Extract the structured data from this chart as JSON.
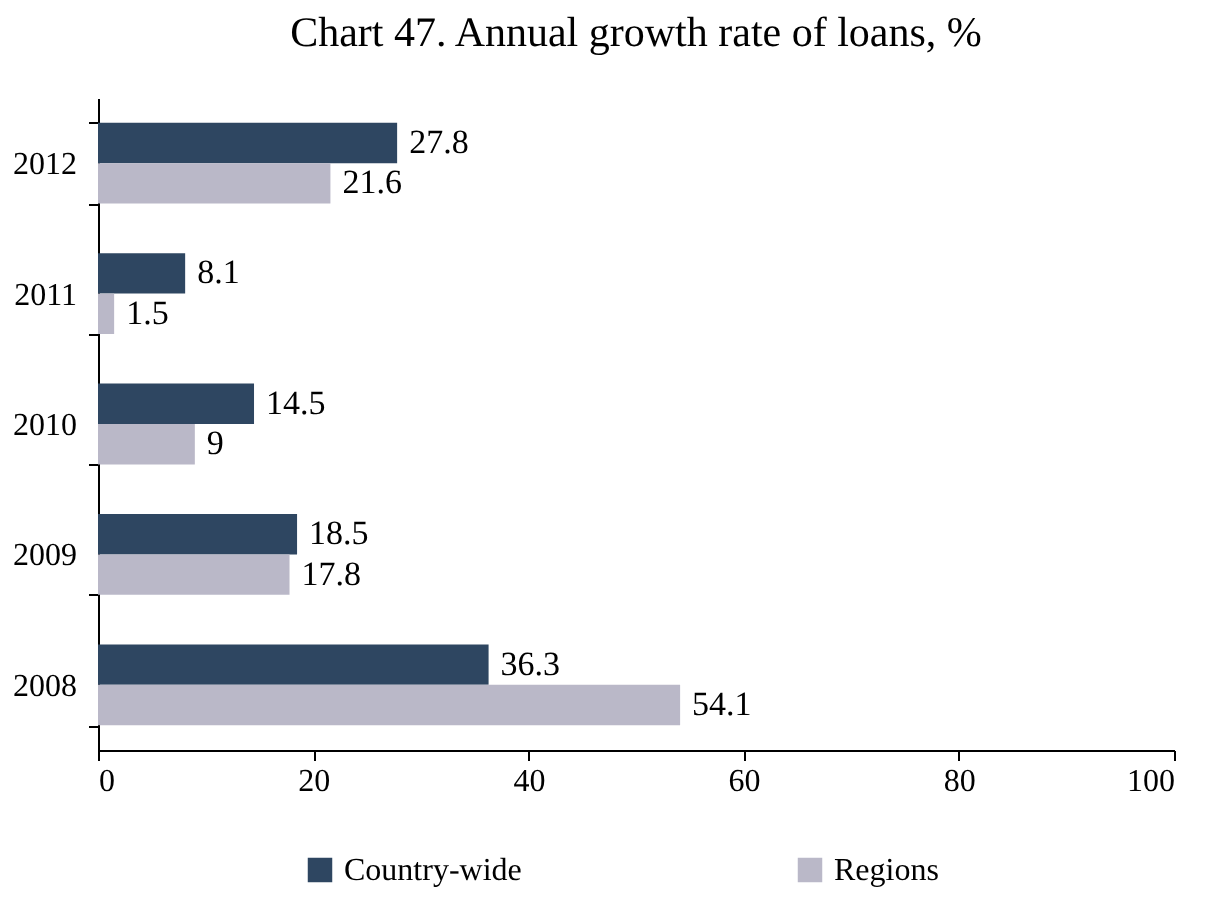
{
  "chart_data": {
    "type": "bar",
    "orientation": "horizontal",
    "title": "Chart 47. Annual growth rate of loans, %",
    "categories": [
      "2012",
      "2011",
      "2010",
      "2009",
      "2008"
    ],
    "series": [
      {
        "name": "Country-wide",
        "color": "#2e4661",
        "values": [
          27.8,
          8.1,
          14.5,
          18.5,
          36.3
        ]
      },
      {
        "name": "Regions",
        "color": "#bab8c8",
        "values": [
          21.6,
          1.5,
          9,
          17.8,
          54.1
        ]
      }
    ],
    "xlim": [
      0,
      100
    ],
    "xticks": [
      0,
      20,
      40,
      60,
      80,
      100
    ],
    "data_labels": true,
    "grid": false,
    "legend": "bottom"
  }
}
